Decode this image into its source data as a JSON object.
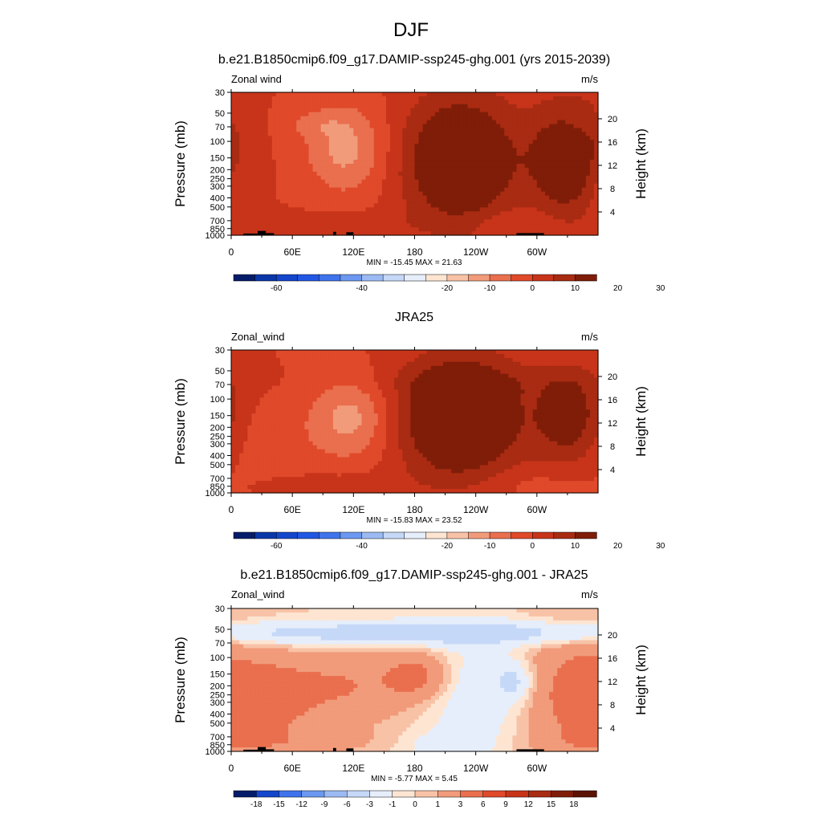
{
  "figure": {
    "season": "DJF",
    "min_max_label": "MIN = {min}  MAX = {max}"
  },
  "chart_data": [
    {
      "type": "heatmap",
      "title": "b.e21.B1850cmip6.f09_g17.DAMIP-ssp245-ghg.001 (yrs 2015-2039)",
      "left_label": "Zonal wind",
      "units": "m/s",
      "ylabel": "Pressure (mb)",
      "y2label": "Height (km)",
      "x_ticks": [
        "0",
        "60E",
        "120E",
        "180",
        "120W",
        "60W"
      ],
      "x_tick_lons": [
        0,
        60,
        120,
        180,
        240,
        300
      ],
      "xlim": [
        0,
        360
      ],
      "y_ticks": [
        30,
        50,
        70,
        100,
        150,
        200,
        250,
        300,
        400,
        500,
        700,
        850,
        1000
      ],
      "ylim": [
        1000,
        30
      ],
      "height_ticks_km": [
        4,
        8,
        12,
        16,
        20
      ],
      "min": -15.45,
      "max": 21.63,
      "topography": true,
      "colorbar_levels": [
        -70,
        -65,
        -60,
        -55,
        -50,
        -45,
        -40,
        -35,
        -30,
        -25,
        -20,
        -15,
        -10,
        -5,
        0,
        5,
        10,
        15,
        20,
        25,
        30,
        35
      ],
      "colorbar_labels": [
        "-60",
        "-40",
        "-20",
        "-10",
        "0",
        "10",
        "20",
        "30"
      ],
      "colorbar_label_at": [
        2,
        6,
        10,
        12,
        14,
        16,
        18,
        20
      ],
      "colorbar_colors": [
        "#051c6a",
        "#0a37a8",
        "#1446cc",
        "#2257e4",
        "#3f73ec",
        "#6b98f0",
        "#9bbaf3",
        "#c5d8f7",
        "#e6eefb",
        "#fde5d2",
        "#f8c2a6",
        "#f19b7a",
        "#e96f4e",
        "#e0492a",
        "#c7341a",
        "#a82b12",
        "#7f1d08"
      ],
      "features": [
        {
          "lon": 113,
          "p": 120,
          "value": -12,
          "wlon": 28,
          "wlog": 0.34
        },
        {
          "lon": 0,
          "p": 260,
          "value": -4,
          "wlon": 14,
          "wlog": 0.25
        },
        {
          "lon": 80,
          "p": 65,
          "value": -4,
          "wlon": 22,
          "wlog": 0.1
        },
        {
          "lon": 340,
          "p": 70,
          "value": -3,
          "wlon": 16,
          "wlog": 0.08
        },
        {
          "lon": 270,
          "p": 750,
          "value": -3,
          "wlon": 30,
          "wlog": 0.1
        },
        {
          "lon": 225,
          "p": 160,
          "value": 20,
          "wlon": 40,
          "wlog": 0.5
        },
        {
          "lon": 332,
          "p": 155,
          "value": 18,
          "wlon": 26,
          "wlog": 0.42
        },
        {
          "lon": 105,
          "p": 800,
          "value": 4,
          "wlon": 50,
          "wlog": 0.1
        }
      ]
    },
    {
      "type": "heatmap",
      "title": "JRA25",
      "left_label": "Zonal_wind",
      "units": "m/s",
      "ylabel": "Pressure (mb)",
      "y2label": "Height (km)",
      "x_ticks": [
        "0",
        "60E",
        "120E",
        "180",
        "120W",
        "60W"
      ],
      "x_tick_lons": [
        0,
        60,
        120,
        180,
        240,
        300
      ],
      "xlim": [
        0,
        360
      ],
      "y_ticks": [
        30,
        50,
        70,
        100,
        150,
        200,
        250,
        300,
        400,
        500,
        700,
        850,
        1000
      ],
      "ylim": [
        1000,
        30
      ],
      "height_ticks_km": [
        4,
        8,
        12,
        16,
        20
      ],
      "min": -15.83,
      "max": 23.52,
      "topography": false,
      "colorbar_levels": [
        -70,
        -65,
        -60,
        -55,
        -50,
        -45,
        -40,
        -35,
        -30,
        -25,
        -20,
        -15,
        -10,
        -5,
        0,
        5,
        10,
        15,
        20,
        25,
        30,
        35
      ],
      "colorbar_labels": [
        "-60",
        "-40",
        "-20",
        "-10",
        "0",
        "10",
        "20",
        "30"
      ],
      "colorbar_label_at": [
        2,
        6,
        10,
        12,
        14,
        16,
        18,
        20
      ],
      "colorbar_colors": [
        "#051c6a",
        "#0a37a8",
        "#1446cc",
        "#2257e4",
        "#3f73ec",
        "#6b98f0",
        "#9bbaf3",
        "#c5d8f7",
        "#e6eefb",
        "#fde5d2",
        "#f8c2a6",
        "#f19b7a",
        "#e96f4e",
        "#e0492a",
        "#c7341a",
        "#a82b12",
        "#7f1d08"
      ],
      "features": [
        {
          "lon": 118,
          "p": 160,
          "value": -12,
          "wlon": 28,
          "wlog": 0.3
        },
        {
          "lon": 40,
          "p": 300,
          "value": -3,
          "wlon": 40,
          "wlog": 0.3
        },
        {
          "lon": 225,
          "p": 160,
          "value": 23,
          "wlon": 42,
          "wlog": 0.45
        },
        {
          "lon": 332,
          "p": 155,
          "value": 14,
          "wlon": 24,
          "wlog": 0.35
        },
        {
          "lon": 250,
          "p": 65,
          "value": 3,
          "wlon": 80,
          "wlog": 0.12
        },
        {
          "lon": 90,
          "p": 820,
          "value": 3,
          "wlon": 60,
          "wlog": 0.1
        },
        {
          "lon": 300,
          "p": 800,
          "value": -3,
          "wlon": 50,
          "wlog": 0.12
        }
      ]
    },
    {
      "type": "heatmap",
      "title": "b.e21.B1850cmip6.f09_g17.DAMIP-ssp245-ghg.001 - JRA25",
      "left_label": "Zonal_wind",
      "units": "m/s",
      "ylabel": "Pressure (mb)",
      "y2label": "Height (km)",
      "x_ticks": [
        "0",
        "60E",
        "120E",
        "180",
        "120W",
        "60W"
      ],
      "x_tick_lons": [
        0,
        60,
        120,
        180,
        240,
        300
      ],
      "xlim": [
        0,
        360
      ],
      "y_ticks": [
        30,
        50,
        70,
        100,
        150,
        200,
        250,
        300,
        400,
        500,
        700,
        850,
        1000
      ],
      "ylim": [
        1000,
        30
      ],
      "height_ticks_km": [
        4,
        8,
        12,
        16,
        20
      ],
      "min": -5.77,
      "max": 5.45,
      "topography": true,
      "colorbar_levels": [
        -21,
        -18,
        -15,
        -12,
        -9,
        -6,
        -3,
        -1,
        0,
        1,
        3,
        6,
        9,
        12,
        15,
        18,
        21
      ],
      "colorbar_labels": [
        "-18",
        "-15",
        "-12",
        "-9",
        "-6",
        "-3",
        "-1",
        "0",
        "1",
        "3",
        "6",
        "9",
        "12",
        "15",
        "18"
      ],
      "colorbar_label_at": [
        1,
        2,
        3,
        4,
        5,
        6,
        7,
        8,
        9,
        10,
        11,
        12,
        13,
        14,
        15
      ],
      "colorbar_colors": [
        "#051c6a",
        "#1446cc",
        "#3f73ec",
        "#6b98f0",
        "#9bbaf3",
        "#c5d8f7",
        "#e6eefb",
        "#fde5d2",
        "#f8c2a6",
        "#f19b7a",
        "#e96f4e",
        "#e0492a",
        "#c7341a",
        "#a82b12",
        "#7f1d08",
        "#5c1404"
      ],
      "features": [
        {
          "lon": 180,
          "p": 55,
          "value": -5,
          "wlon": 200,
          "wlog": 0.09
        },
        {
          "lon": 110,
          "p": 200,
          "value": 3,
          "wlon": 50,
          "wlog": 0.3
        },
        {
          "lon": 40,
          "p": 300,
          "value": 2.5,
          "wlon": 30,
          "wlog": 0.3
        },
        {
          "lon": 185,
          "p": 160,
          "value": 3.5,
          "wlon": 22,
          "wlog": 0.18
        },
        {
          "lon": 240,
          "p": 280,
          "value": -2.5,
          "wlon": 35,
          "wlog": 0.45
        },
        {
          "lon": 278,
          "p": 180,
          "value": -3.5,
          "wlon": 12,
          "wlog": 0.15
        },
        {
          "lon": 340,
          "p": 250,
          "value": 4,
          "wlon": 40,
          "wlog": 0.5
        },
        {
          "lon": 60,
          "p": 800,
          "value": 1.5,
          "wlon": 70,
          "wlog": 0.1
        },
        {
          "lon": 200,
          "p": 850,
          "value": -1.5,
          "wlon": 30,
          "wlog": 0.1
        }
      ]
    }
  ]
}
